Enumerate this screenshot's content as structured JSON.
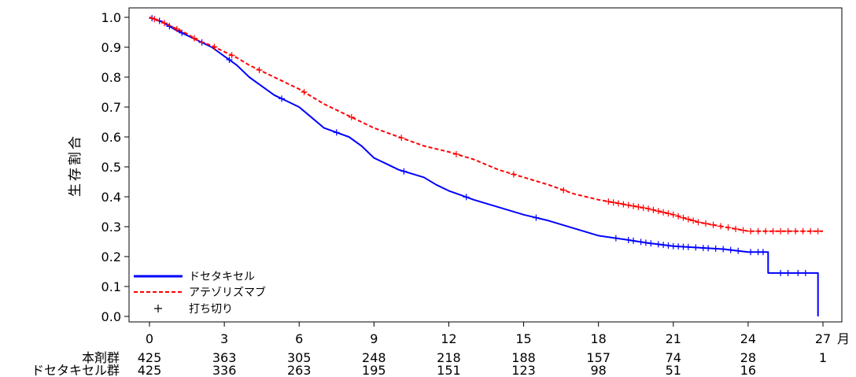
{
  "chart_data": {
    "type": "line",
    "title": "",
    "ylabel": "生存割合",
    "x_unit": "月",
    "xlim": [
      0,
      27
    ],
    "ylim": [
      0.0,
      1.0
    ],
    "x_ticks": [
      0,
      3,
      6,
      9,
      12,
      15,
      18,
      21,
      24,
      27
    ],
    "y_ticks": [
      "0.0",
      "0.1",
      "0.2",
      "0.3",
      "0.4",
      "0.5",
      "0.6",
      "0.7",
      "0.8",
      "0.9",
      "1.0"
    ],
    "grid": false,
    "legend": {
      "placement": "bottom-left",
      "entries": [
        "ドセタキセル",
        "アテゾリズマブ",
        "打ち切り"
      ]
    },
    "series": [
      {
        "name": "ドセタキセル",
        "color": "#0000ff",
        "style": "solid",
        "points": [
          [
            0,
            1.0
          ],
          [
            0.5,
            0.985
          ],
          [
            1,
            0.96
          ],
          [
            1.5,
            0.94
          ],
          [
            2,
            0.92
          ],
          [
            2.5,
            0.9
          ],
          [
            3,
            0.87
          ],
          [
            3.5,
            0.84
          ],
          [
            4,
            0.8
          ],
          [
            4.5,
            0.77
          ],
          [
            5,
            0.74
          ],
          [
            5.5,
            0.72
          ],
          [
            6,
            0.7
          ],
          [
            6.5,
            0.665
          ],
          [
            7,
            0.63
          ],
          [
            8,
            0.6
          ],
          [
            8.5,
            0.57
          ],
          [
            9,
            0.53
          ],
          [
            9.5,
            0.51
          ],
          [
            10,
            0.49
          ],
          [
            11,
            0.465
          ],
          [
            11.5,
            0.44
          ],
          [
            12,
            0.42
          ],
          [
            12.5,
            0.405
          ],
          [
            13,
            0.39
          ],
          [
            14,
            0.365
          ],
          [
            15,
            0.34
          ],
          [
            16,
            0.32
          ],
          [
            17,
            0.295
          ],
          [
            18,
            0.27
          ],
          [
            19,
            0.258
          ],
          [
            20,
            0.245
          ],
          [
            20.5,
            0.24
          ],
          [
            21,
            0.235
          ],
          [
            22,
            0.23
          ],
          [
            23,
            0.225
          ],
          [
            24,
            0.215
          ],
          [
            24.8,
            0.215
          ],
          [
            24.8,
            0.145
          ],
          [
            26.8,
            0.145
          ],
          [
            26.8,
            0.0
          ]
        ],
        "censor_x": [
          0.1,
          0.4,
          0.8,
          1.3,
          2.1,
          3.2,
          5.3,
          7.5,
          10.2,
          12.7,
          15.5,
          18.7,
          19.2,
          19.4,
          19.7,
          19.9,
          20.1,
          20.4,
          20.6,
          20.8,
          21.0,
          21.2,
          21.4,
          21.6,
          21.9,
          22.2,
          22.4,
          22.7,
          23.0,
          23.3,
          23.6,
          24.1,
          24.4,
          24.6,
          25.3,
          25.6,
          26.0,
          26.3
        ]
      },
      {
        "name": "アテゾリズマブ",
        "color": "#ff0000",
        "style": "dashed",
        "points": [
          [
            0,
            1.0
          ],
          [
            0.5,
            0.985
          ],
          [
            1,
            0.965
          ],
          [
            1.5,
            0.945
          ],
          [
            2,
            0.92
          ],
          [
            2.5,
            0.905
          ],
          [
            3,
            0.885
          ],
          [
            3.5,
            0.865
          ],
          [
            4,
            0.84
          ],
          [
            5,
            0.8
          ],
          [
            6,
            0.76
          ],
          [
            6.5,
            0.735
          ],
          [
            7,
            0.71
          ],
          [
            8,
            0.67
          ],
          [
            9,
            0.63
          ],
          [
            10,
            0.6
          ],
          [
            11,
            0.57
          ],
          [
            12,
            0.55
          ],
          [
            13,
            0.525
          ],
          [
            14,
            0.49
          ],
          [
            15,
            0.465
          ],
          [
            16,
            0.44
          ],
          [
            17,
            0.41
          ],
          [
            18,
            0.39
          ],
          [
            19,
            0.375
          ],
          [
            20,
            0.36
          ],
          [
            21,
            0.34
          ],
          [
            22,
            0.315
          ],
          [
            23,
            0.3
          ],
          [
            24,
            0.285
          ],
          [
            25,
            0.285
          ],
          [
            26,
            0.285
          ],
          [
            27,
            0.285
          ]
        ],
        "censor_x": [
          0.2,
          0.6,
          1.1,
          1.8,
          2.6,
          3.3,
          4.4,
          6.2,
          8.1,
          10.1,
          12.3,
          14.6,
          16.6,
          18.4,
          18.6,
          18.8,
          19.0,
          19.2,
          19.4,
          19.6,
          19.8,
          20.0,
          20.2,
          20.4,
          20.6,
          20.8,
          21.0,
          21.2,
          21.4,
          21.6,
          21.8,
          22.0,
          22.3,
          22.6,
          22.9,
          23.2,
          23.5,
          23.8,
          24.1,
          24.4,
          24.7,
          25.0,
          25.3,
          25.6,
          25.9,
          26.2,
          26.5,
          26.8
        ]
      }
    ],
    "risk_table": {
      "x": [
        0,
        3,
        6,
        9,
        12,
        15,
        18,
        21,
        24,
        27
      ],
      "rows": [
        {
          "label": "本剤群",
          "values": [
            "425",
            "363",
            "305",
            "248",
            "218",
            "188",
            "157",
            "74",
            "28",
            "1"
          ]
        },
        {
          "label": "ドセタキセル群",
          "values": [
            "425",
            "336",
            "263",
            "195",
            "151",
            "123",
            "98",
            "51",
            "16",
            ""
          ]
        }
      ]
    }
  }
}
